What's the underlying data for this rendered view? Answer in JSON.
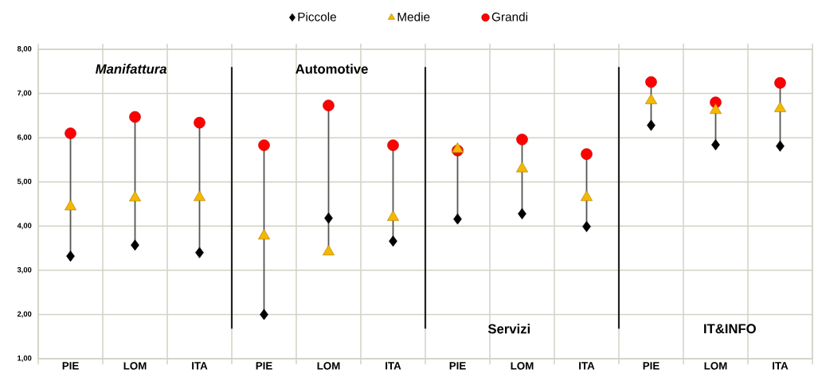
{
  "chart_data": {
    "type": "scatter",
    "categories": [
      "PIE",
      "LOM",
      "ITA",
      "PIE",
      "LOM",
      "ITA",
      "PIE",
      "LOM",
      "ITA",
      "PIE",
      "LOM",
      "ITA"
    ],
    "series": [
      {
        "name": "Piccole",
        "color": "#000000",
        "marker": "diamond",
        "values": [
          3.32,
          3.57,
          3.4,
          2.0,
          4.18,
          3.66,
          4.16,
          4.28,
          3.99,
          6.28,
          5.84,
          5.81
        ]
      },
      {
        "name": "Medie",
        "color": "#f5b700",
        "marker": "triangle",
        "values": [
          4.44,
          4.64,
          4.65,
          3.78,
          3.42,
          4.2,
          5.74,
          5.3,
          4.65,
          6.84,
          6.62,
          6.66
        ]
      },
      {
        "name": "Grandi",
        "color": "#ff0000",
        "marker": "circle",
        "values": [
          6.1,
          6.47,
          6.34,
          5.83,
          6.73,
          5.83,
          5.71,
          5.96,
          5.63,
          7.26,
          6.8,
          7.24
        ]
      }
    ],
    "ylim": [
      1,
      8
    ],
    "yticks": [
      {
        "value": 1,
        "label": "1,00"
      },
      {
        "value": 2,
        "label": "2,00"
      },
      {
        "value": 3,
        "label": "3,00"
      },
      {
        "value": 4,
        "label": "4,00"
      },
      {
        "value": 5,
        "label": "5,00"
      },
      {
        "value": 6,
        "label": "6,00"
      },
      {
        "value": 7,
        "label": "7,00"
      },
      {
        "value": 8,
        "label": "8,00"
      }
    ],
    "grid": true,
    "legend": "top",
    "annotations": [
      "Manifattura",
      "Automotive",
      "Servizi",
      "IT&INFO"
    ]
  }
}
